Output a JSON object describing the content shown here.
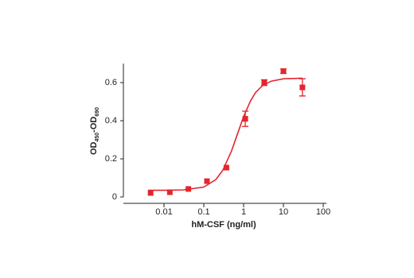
{
  "chart_data": {
    "type": "scatter",
    "xlabel": "hM-CSF (ng/ml)",
    "ylabel_parts": [
      "OD",
      "450",
      "-OD",
      "690"
    ],
    "xscale": "log",
    "xlim": [
      0.001,
      100
    ],
    "xticks": [
      0.01,
      0.1,
      1,
      10,
      100
    ],
    "ylim": [
      0,
      0.7
    ],
    "yticks": [
      0,
      0.2,
      0.4,
      0.6
    ],
    "color": "#e3262e",
    "x": [
      0.0046,
      0.014,
      0.041,
      0.12,
      0.37,
      1.1,
      3.3,
      10,
      30
    ],
    "values": [
      0.021,
      0.025,
      0.042,
      0.083,
      0.154,
      0.41,
      0.6,
      0.66,
      0.575
    ],
    "errors": [
      null,
      null,
      null,
      null,
      null,
      0.04,
      0.015,
      0.012,
      0.045
    ],
    "fit": {
      "x": [
        0.004,
        0.01,
        0.03,
        0.1,
        0.2,
        0.3,
        0.5,
        0.7,
        1,
        1.5,
        2,
        3,
        5,
        10,
        30
      ],
      "values": [
        0.035,
        0.035,
        0.037,
        0.052,
        0.091,
        0.14,
        0.243,
        0.33,
        0.422,
        0.505,
        0.548,
        0.585,
        0.608,
        0.62,
        0.623
      ]
    }
  }
}
